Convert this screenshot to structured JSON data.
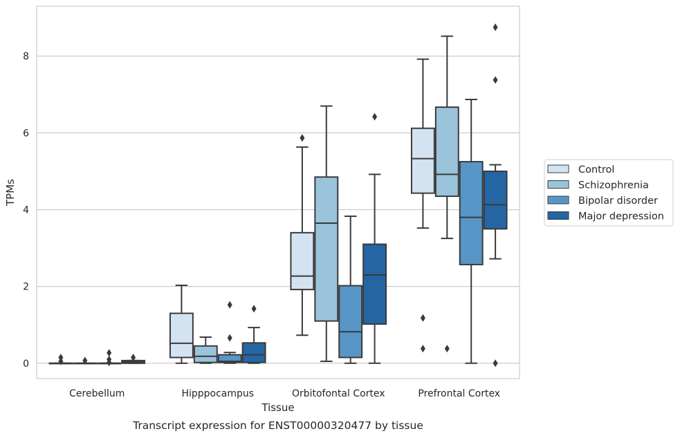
{
  "caption": "Transcript expression for ENST00000320477 by tissue",
  "chart_data": {
    "type": "box",
    "xlabel": "Tissue",
    "ylabel": "TPMs",
    "ylim": [
      -0.4,
      9.3
    ],
    "yticks": [
      0,
      2,
      4,
      6,
      8
    ],
    "grid": true,
    "legend_position": "right",
    "categories": [
      "Cerebellum",
      "Hipppocampus",
      "Orbitofontal Cortex",
      "Prefrontal Cortex"
    ],
    "series": [
      {
        "name": "Control",
        "color": "#d4e3f1",
        "boxes": [
          {
            "whislo": 0.0,
            "q1": 0.0,
            "med": 0.0,
            "q3": 0.0,
            "whishi": 0.0,
            "fliers": [
              0.05,
              0.15
            ]
          },
          {
            "whislo": 0.0,
            "q1": 0.15,
            "med": 0.52,
            "q3": 1.3,
            "whishi": 2.03,
            "fliers": []
          },
          {
            "whislo": 0.73,
            "q1": 1.92,
            "med": 2.27,
            "q3": 3.4,
            "whishi": 5.63,
            "fliers": [
              5.87
            ]
          },
          {
            "whislo": 3.52,
            "q1": 4.43,
            "med": 5.33,
            "q3": 6.12,
            "whishi": 7.92,
            "fliers": [
              1.18,
              0.38
            ]
          }
        ]
      },
      {
        "name": "Schizophrenia",
        "color": "#9ac3dc",
        "boxes": [
          {
            "whislo": 0.0,
            "q1": 0.0,
            "med": 0.0,
            "q3": 0.0,
            "whishi": 0.0,
            "fliers": [
              0.07
            ]
          },
          {
            "whislo": 0.0,
            "q1": 0.02,
            "med": 0.18,
            "q3": 0.45,
            "whishi": 0.68,
            "fliers": []
          },
          {
            "whislo": 0.05,
            "q1": 1.1,
            "med": 3.65,
            "q3": 4.85,
            "whishi": 6.7,
            "fliers": []
          },
          {
            "whislo": 3.25,
            "q1": 4.35,
            "med": 4.92,
            "q3": 6.67,
            "whishi": 8.52,
            "fliers": [
              0.38
            ]
          }
        ]
      },
      {
        "name": "Bipolar disorder",
        "color": "#5796c6",
        "boxes": [
          {
            "whislo": 0.0,
            "q1": 0.0,
            "med": 0.0,
            "q3": 0.0,
            "whishi": 0.0,
            "fliers": [
              0.27,
              0.1,
              0.02
            ]
          },
          {
            "whislo": 0.0,
            "q1": 0.02,
            "med": 0.05,
            "q3": 0.22,
            "whishi": 0.28,
            "fliers": [
              1.52,
              0.66
            ]
          },
          {
            "whislo": 0.0,
            "q1": 0.15,
            "med": 0.82,
            "q3": 2.02,
            "whishi": 3.83,
            "fliers": []
          },
          {
            "whislo": 0.0,
            "q1": 2.57,
            "med": 3.8,
            "q3": 5.25,
            "whishi": 6.87,
            "fliers": []
          }
        ]
      },
      {
        "name": "Major depression",
        "color": "#2465a4",
        "boxes": [
          {
            "whislo": 0.0,
            "q1": 0.0,
            "med": 0.03,
            "q3": 0.07,
            "whishi": 0.07,
            "fliers": [
              0.15
            ]
          },
          {
            "whislo": 0.0,
            "q1": 0.02,
            "med": 0.22,
            "q3": 0.53,
            "whishi": 0.93,
            "fliers": [
              1.42
            ]
          },
          {
            "whislo": 0.0,
            "q1": 1.02,
            "med": 2.3,
            "q3": 3.1,
            "whishi": 4.92,
            "fliers": [
              6.42
            ]
          },
          {
            "whislo": 2.72,
            "q1": 3.5,
            "med": 4.13,
            "q3": 5.0,
            "whishi": 5.17,
            "fliers": [
              8.75,
              7.38,
              0.0
            ]
          }
        ]
      }
    ]
  }
}
